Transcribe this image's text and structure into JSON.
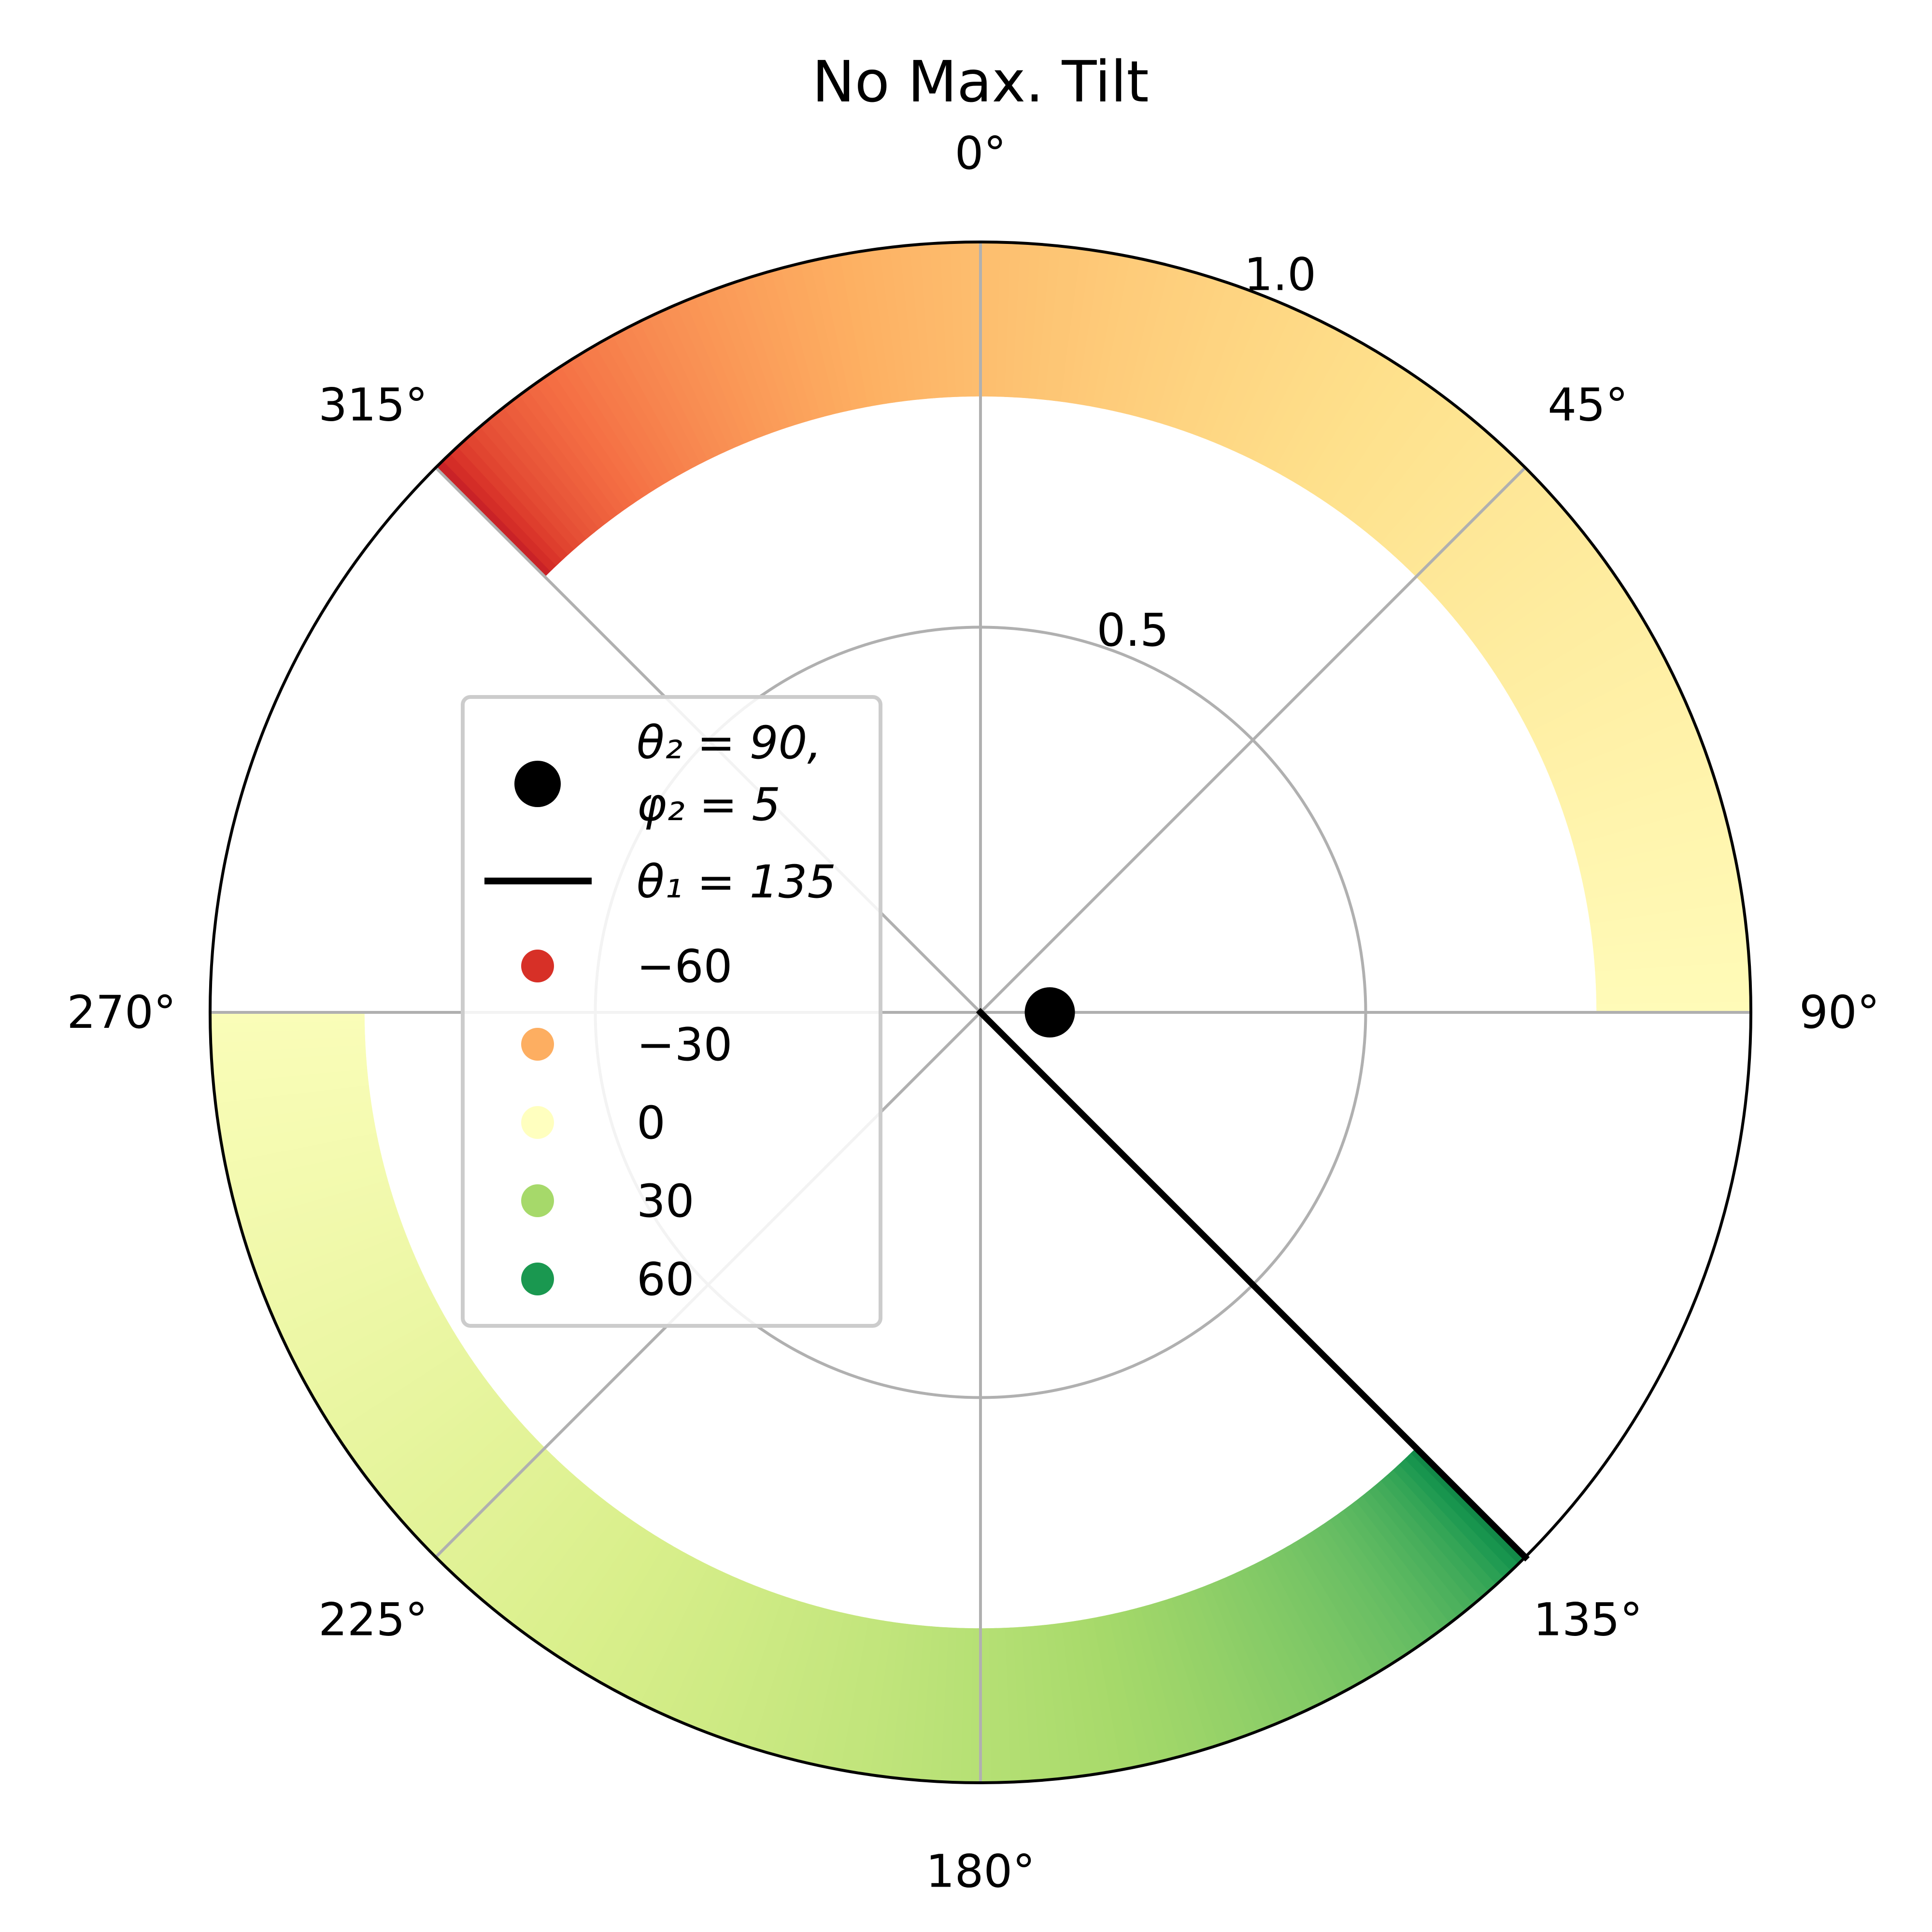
{
  "chart_data": {
    "type": "polar",
    "title": "No Max. Tilt",
    "theta_direction": "clockwise",
    "theta_zero": "top",
    "theta_ticks": [
      "0°",
      "45°",
      "90°",
      "135°",
      "180°",
      "225°",
      "270°",
      "315°"
    ],
    "theta_tick_values": [
      0,
      45,
      90,
      135,
      180,
      225,
      270,
      315
    ],
    "r_ticks": [
      "0.5",
      "1.0"
    ],
    "r_tick_values": [
      0.5,
      1.0
    ],
    "rlim": [
      0,
      1.0
    ],
    "grid": true,
    "legend_placement": "center-left",
    "legend": {
      "point_label_line1": "θ₂ = 90,",
      "point_label_line2": "φ₂ = 5",
      "line_label": "θ₁ = 135",
      "color_entries": [
        {
          "label": "−60",
          "value": -60,
          "color": "#d73027"
        },
        {
          "label": "−30",
          "value": -30,
          "color": "#fdae61"
        },
        {
          "label": "0",
          "value": 0,
          "color": "#ffffbf"
        },
        {
          "label": "30",
          "value": 30,
          "color": "#a6d96a"
        },
        {
          "label": "60",
          "value": 60,
          "color": "#1a9850"
        }
      ]
    },
    "point": {
      "theta": 90,
      "r": 0.09,
      "color": "#000000"
    },
    "line": {
      "theta": 135,
      "r": [
        0,
        1.0
      ],
      "color": "#000000"
    },
    "band": {
      "r_inner": 0.8,
      "r_outer": 1.0,
      "segments": [
        {
          "theta_start": 315,
          "theta_end": 450,
          "value_start": -75,
          "value_end": -2
        },
        {
          "theta_start": 135,
          "theta_end": 270,
          "value_start": 75,
          "value_end": 2
        }
      ]
    },
    "colormap": {
      "name": "RdYlGn",
      "stops": [
        {
          "value": -80,
          "color": "#a50026"
        },
        {
          "value": -60,
          "color": "#d73027"
        },
        {
          "value": -45,
          "color": "#f46d43"
        },
        {
          "value": -30,
          "color": "#fdae61"
        },
        {
          "value": -15,
          "color": "#fee08b"
        },
        {
          "value": 0,
          "color": "#ffffbf"
        },
        {
          "value": 15,
          "color": "#d9ef8b"
        },
        {
          "value": 30,
          "color": "#a6d96a"
        },
        {
          "value": 45,
          "color": "#66bd63"
        },
        {
          "value": 60,
          "color": "#1a9850"
        },
        {
          "value": 80,
          "color": "#006837"
        }
      ]
    }
  }
}
